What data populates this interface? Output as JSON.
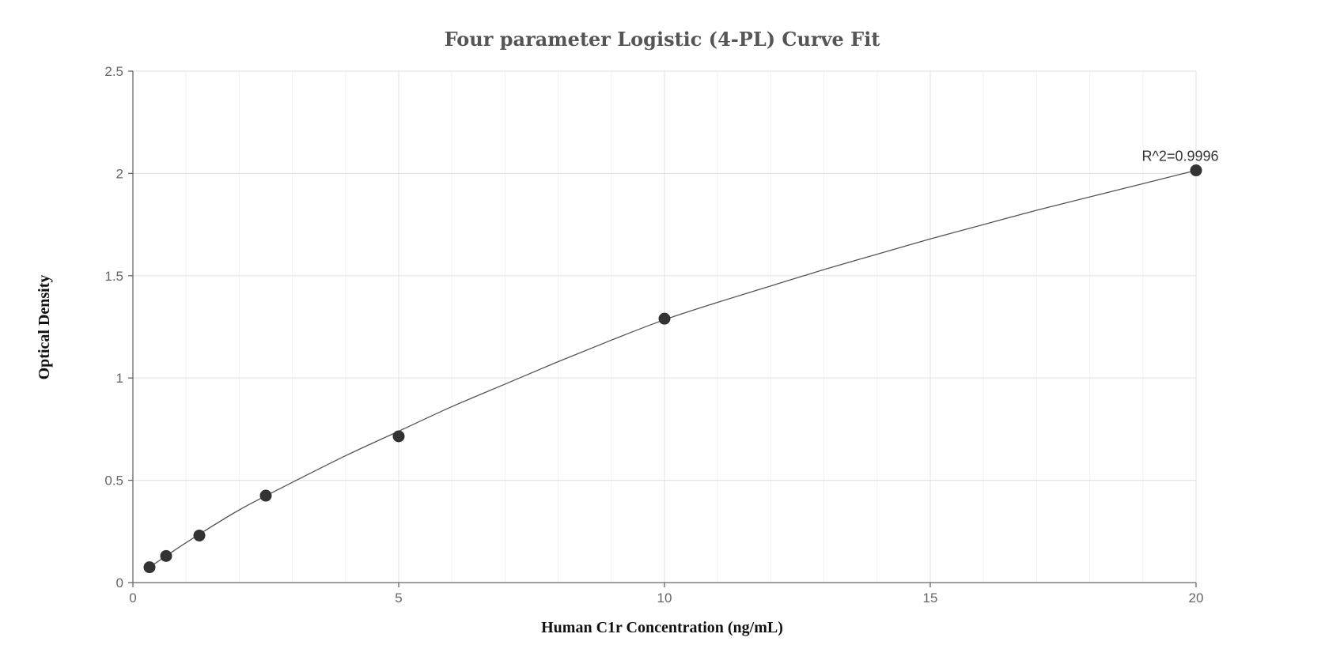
{
  "chart_data": {
    "type": "scatter",
    "title": "Four parameter Logistic (4-PL) Curve Fit",
    "xlabel": "Human C1r Concentration (ng/mL)",
    "ylabel": "Optical Density",
    "xlim": [
      0,
      20
    ],
    "ylim": [
      0,
      2.5
    ],
    "xticks": [
      0,
      5,
      10,
      15,
      20
    ],
    "yticks": [
      0,
      0.5,
      1,
      1.5,
      2,
      2.5
    ],
    "grid": true,
    "series": [
      {
        "points": [
          {
            "x": 0.3125,
            "y": 0.075
          },
          {
            "x": 0.625,
            "y": 0.13
          },
          {
            "x": 1.25,
            "y": 0.23
          },
          {
            "x": 2.5,
            "y": 0.425
          },
          {
            "x": 5,
            "y": 0.715
          },
          {
            "x": 10,
            "y": 1.29
          },
          {
            "x": 20,
            "y": 2.015
          }
        ]
      }
    ],
    "fit_curve": {
      "x": [
        0.3125,
        1,
        2,
        3,
        4,
        5,
        6,
        7,
        8,
        9,
        10,
        11,
        12,
        13,
        14,
        15,
        16,
        17,
        18,
        19,
        20
      ],
      "y": [
        0.075,
        0.195,
        0.355,
        0.49,
        0.62,
        0.74,
        0.86,
        0.97,
        1.08,
        1.185,
        1.285,
        1.37,
        1.45,
        1.53,
        1.605,
        1.68,
        1.75,
        1.82,
        1.885,
        1.95,
        2.015
      ]
    },
    "annotation": "R^2=0.9996",
    "colors": {
      "points": "#333333",
      "curve": "#555555",
      "grid": "#e3e6e8"
    }
  }
}
